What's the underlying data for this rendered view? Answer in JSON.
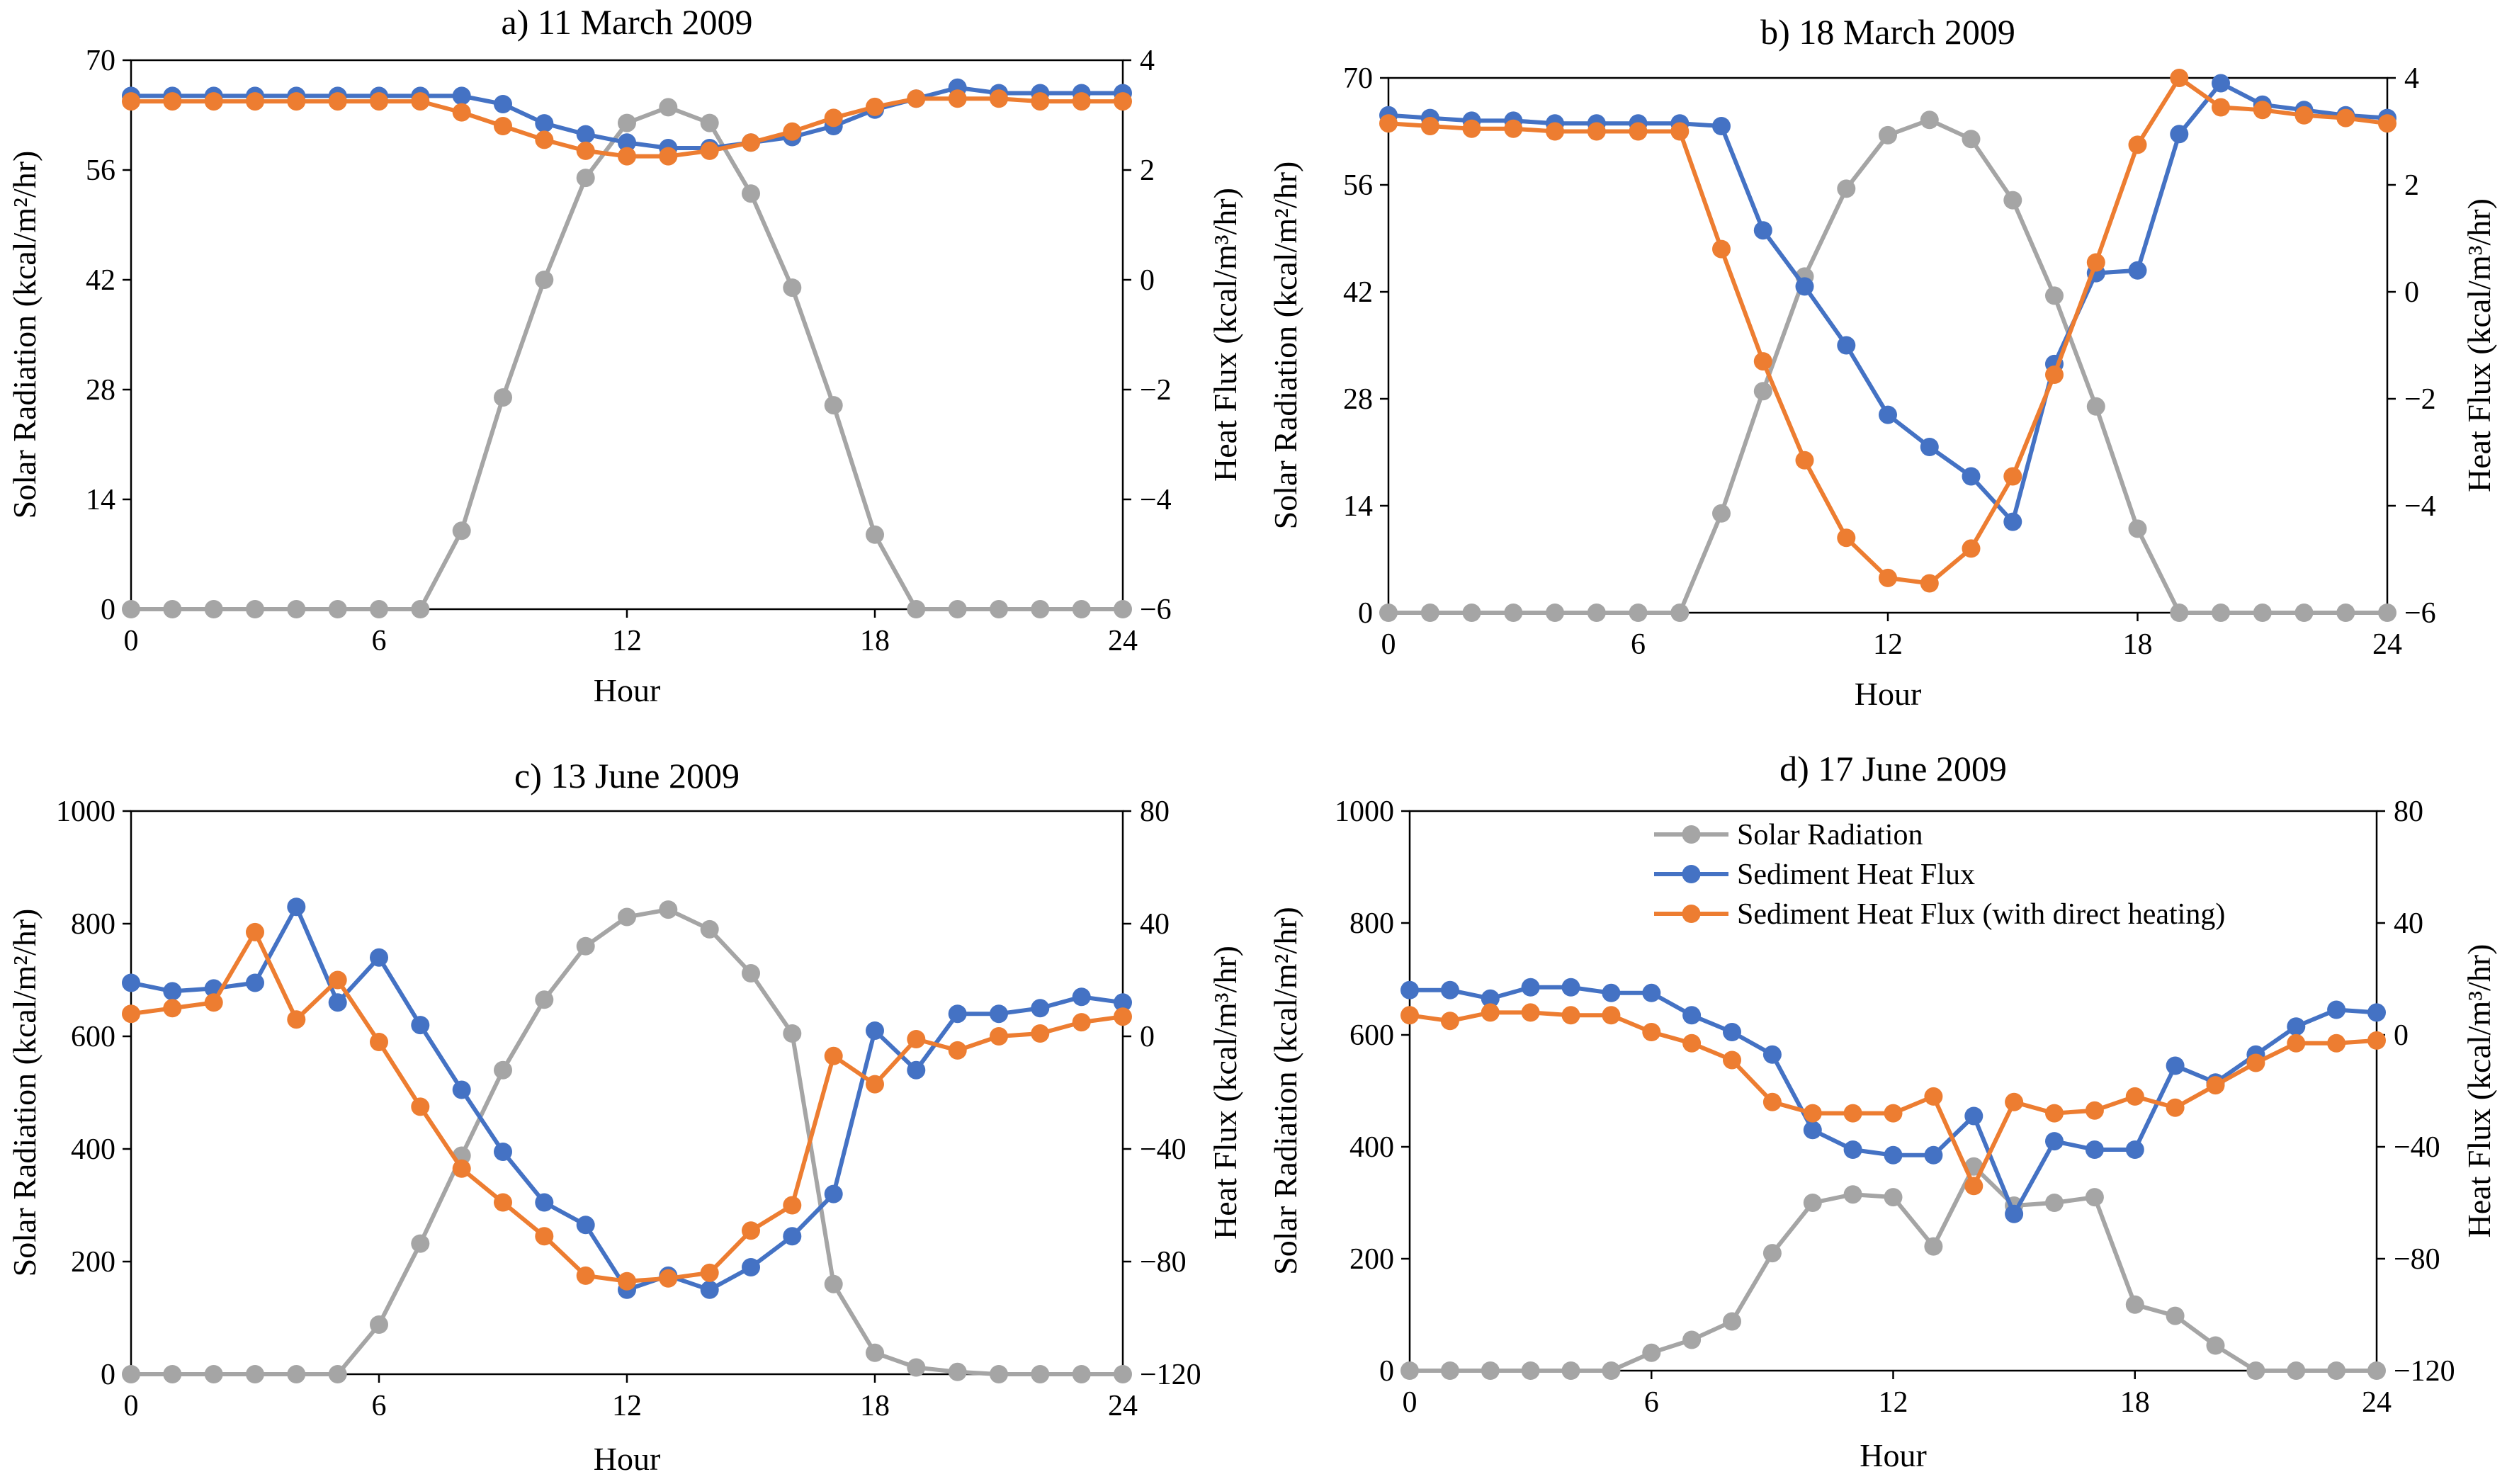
{
  "chart_data": [
    {
      "id": "a",
      "type": "line",
      "title": "a) 11 March 2009",
      "xlabel": "Hour",
      "ylabel_left": "Solar Radiation (kcal/m²/hr)",
      "ylabel_right": "Heat Flux (kcal/m³/hr)",
      "xlim": [
        0,
        24
      ],
      "xticks": [
        0,
        6,
        12,
        18,
        24
      ],
      "ylim_left": [
        0,
        70
      ],
      "yticks_left": [
        0,
        14,
        28,
        42,
        56,
        70
      ],
      "ylim_right": [
        -6,
        4
      ],
      "yticks_right": [
        -6,
        -4,
        -2,
        0,
        2,
        4
      ],
      "grid": false,
      "x": [
        0,
        1,
        2,
        3,
        4,
        5,
        6,
        7,
        8,
        9,
        10,
        11,
        12,
        13,
        14,
        15,
        16,
        17,
        18,
        19,
        20,
        21,
        22,
        23,
        24
      ],
      "series": [
        {
          "name": "Solar Radiation",
          "axis": "left",
          "color": "#a5a5a5",
          "values": [
            0,
            0,
            0,
            0,
            0,
            0,
            0,
            0,
            10,
            27,
            42,
            55,
            62,
            64,
            62,
            53,
            41,
            26,
            9.5,
            0,
            0,
            0,
            0,
            0,
            0
          ]
        },
        {
          "name": "Sediment Heat Flux",
          "axis": "right",
          "color": "#4472c4",
          "values": [
            3.35,
            3.35,
            3.35,
            3.35,
            3.35,
            3.35,
            3.35,
            3.35,
            3.35,
            3.2,
            2.85,
            2.65,
            2.5,
            2.4,
            2.4,
            2.5,
            2.6,
            2.8,
            3.1,
            3.3,
            3.5,
            3.4,
            3.4,
            3.4,
            3.4
          ]
        },
        {
          "name": "Sediment Heat Flux (with direct heating)",
          "axis": "right",
          "color": "#ed7d31",
          "values": [
            3.25,
            3.25,
            3.25,
            3.25,
            3.25,
            3.25,
            3.25,
            3.25,
            3.05,
            2.8,
            2.55,
            2.35,
            2.25,
            2.25,
            2.35,
            2.5,
            2.7,
            2.95,
            3.15,
            3.3,
            3.3,
            3.3,
            3.25,
            3.25,
            3.25
          ]
        }
      ]
    },
    {
      "id": "b",
      "type": "line",
      "title": "b) 18 March 2009",
      "xlabel": "Hour",
      "ylabel_left": "Solar Radiation (kcal/m²/hr)",
      "ylabel_right": "Heat Flux (kcal/m³/hr)",
      "xlim": [
        0,
        24
      ],
      "xticks": [
        0,
        6,
        12,
        18,
        24
      ],
      "ylim_left": [
        0,
        70
      ],
      "yticks_left": [
        0,
        14,
        28,
        42,
        56,
        70
      ],
      "ylim_right": [
        -6,
        4
      ],
      "yticks_right": [
        -6,
        -4,
        -2,
        0,
        2,
        4
      ],
      "grid": false,
      "x": [
        0,
        1,
        2,
        3,
        4,
        5,
        6,
        7,
        8,
        9,
        10,
        11,
        12,
        13,
        14,
        15,
        16,
        17,
        18,
        19,
        20,
        21,
        22,
        23,
        24
      ],
      "series": [
        {
          "name": "Solar Radiation",
          "axis": "left",
          "color": "#a5a5a5",
          "values": [
            0,
            0,
            0,
            0,
            0,
            0,
            0,
            0,
            13,
            29,
            44,
            55.5,
            62.5,
            64.5,
            62,
            54,
            41.5,
            27,
            11,
            0,
            0,
            0,
            0,
            0,
            0
          ]
        },
        {
          "name": "Sediment Heat Flux",
          "axis": "right",
          "color": "#4472c4",
          "values": [
            3.3,
            3.25,
            3.2,
            3.2,
            3.15,
            3.15,
            3.15,
            3.15,
            3.1,
            1.15,
            0.1,
            -1.0,
            -2.3,
            -2.9,
            -3.45,
            -4.3,
            -1.35,
            0.35,
            0.4,
            2.95,
            3.9,
            3.5,
            3.4,
            3.3,
            3.25
          ]
        },
        {
          "name": "Sediment Heat Flux (with direct heating)",
          "axis": "right",
          "color": "#ed7d31",
          "values": [
            3.15,
            3.1,
            3.05,
            3.05,
            3.0,
            3.0,
            3.0,
            3.0,
            0.8,
            -1.3,
            -3.15,
            -4.6,
            -5.35,
            -5.45,
            -4.8,
            -3.45,
            -1.55,
            0.55,
            2.75,
            4.0,
            3.45,
            3.4,
            3.3,
            3.25,
            3.15
          ]
        }
      ]
    },
    {
      "id": "c",
      "type": "line",
      "title": "c) 13 June 2009",
      "xlabel": "Hour",
      "ylabel_left": "Solar Radiation (kcal/m²/hr)",
      "ylabel_right": "Heat Flux (kcal/m³/hr)",
      "xlim": [
        0,
        24
      ],
      "xticks": [
        0,
        6,
        12,
        18,
        24
      ],
      "ylim_left": [
        0,
        1000
      ],
      "yticks_left": [
        0,
        200,
        400,
        600,
        800,
        1000
      ],
      "ylim_right": [
        -120,
        80
      ],
      "yticks_right": [
        -120,
        -80,
        -40,
        0,
        40,
        80
      ],
      "grid": false,
      "x": [
        0,
        1,
        2,
        3,
        4,
        5,
        6,
        7,
        8,
        9,
        10,
        11,
        12,
        13,
        14,
        15,
        16,
        17,
        18,
        19,
        20,
        21,
        22,
        23,
        24
      ],
      "series": [
        {
          "name": "Solar Radiation",
          "axis": "left",
          "color": "#a5a5a5",
          "values": [
            0,
            0,
            0,
            0,
            0,
            0,
            88,
            232,
            388,
            540,
            665,
            760,
            812,
            825,
            790,
            712,
            605,
            160,
            38,
            12,
            4,
            0,
            0,
            0,
            0
          ]
        },
        {
          "name": "Sediment Heat Flux",
          "axis": "right",
          "color": "#4472c4",
          "values": [
            19,
            16,
            17,
            19,
            46,
            12,
            28,
            4,
            -19,
            -41,
            -59,
            -67,
            -90,
            -85,
            -90,
            -82,
            -71,
            -56,
            2,
            -12,
            8,
            8,
            10,
            14,
            12
          ]
        },
        {
          "name": "Sediment Heat Flux (with direct heating)",
          "axis": "right",
          "color": "#ed7d31",
          "values": [
            8,
            10,
            12,
            37,
            6,
            20,
            -2,
            -25,
            -47,
            -59,
            -71,
            -85,
            -87,
            -86,
            -84,
            -69,
            -60,
            -7,
            -17,
            -1,
            -5,
            0,
            1,
            5,
            7
          ]
        }
      ]
    },
    {
      "id": "d",
      "type": "line",
      "title": "d) 17 June 2009",
      "xlabel": "Hour",
      "ylabel_left": "Solar Radiation (kcal/m²/hr)",
      "ylabel_right": "Heat Flux (kcal/m³/hr)",
      "xlim": [
        0,
        24
      ],
      "xticks": [
        0,
        6,
        12,
        18,
        24
      ],
      "ylim_left": [
        0,
        1000
      ],
      "yticks_left": [
        0,
        200,
        400,
        600,
        800,
        1000
      ],
      "ylim_right": [
        -120,
        80
      ],
      "yticks_right": [
        -120,
        -80,
        -40,
        0,
        40,
        80
      ],
      "grid": false,
      "legend_position": "top-center",
      "legend": [
        "Solar Radiation",
        "Sediment Heat Flux",
        "Sediment Heat Flux (with direct heating)"
      ],
      "x": [
        0,
        1,
        2,
        3,
        4,
        5,
        6,
        7,
        8,
        9,
        10,
        11,
        12,
        13,
        14,
        15,
        16,
        17,
        18,
        19,
        20,
        21,
        22,
        23,
        24
      ],
      "series": [
        {
          "name": "Solar Radiation",
          "axis": "left",
          "color": "#a5a5a5",
          "values": [
            0,
            0,
            0,
            0,
            0,
            0,
            32,
            55,
            88,
            210,
            300,
            315,
            310,
            222,
            365,
            295,
            300,
            310,
            118,
            98,
            45,
            0,
            0,
            0,
            0
          ]
        },
        {
          "name": "Sediment Heat Flux",
          "axis": "right",
          "color": "#4472c4",
          "values": [
            16,
            16,
            13,
            17,
            17,
            15,
            15,
            7,
            1,
            -7,
            -34,
            -41,
            -43,
            -43,
            -29,
            -64,
            -38,
            -41,
            -41,
            -11,
            -17,
            -7,
            3,
            9,
            8
          ]
        },
        {
          "name": "Sediment Heat Flux (with direct heating)",
          "axis": "right",
          "color": "#ed7d31",
          "values": [
            7,
            5,
            8,
            8,
            7,
            7,
            1,
            -3,
            -9,
            -24,
            -28,
            -28,
            -28,
            -22,
            -54,
            -24,
            -28,
            -27,
            -22,
            -26,
            -18,
            -10,
            -3,
            -3,
            -2
          ]
        }
      ]
    }
  ]
}
